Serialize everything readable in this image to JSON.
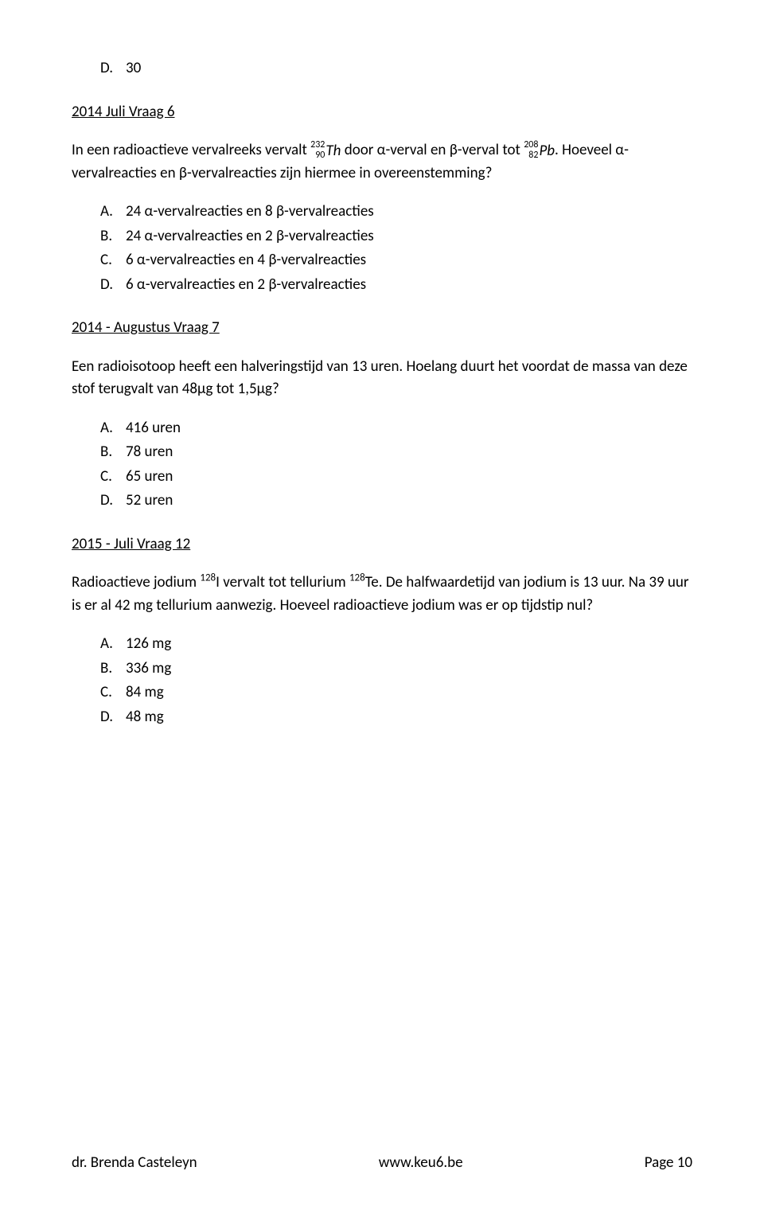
{
  "top_item": {
    "marker": "D.",
    "text": "30"
  },
  "q1": {
    "heading": "2014 Juli Vraag 6",
    "para_pre": "In een radioactieve vervalreeks vervalt ",
    "iso1_top": "232",
    "iso1_bot": "90",
    "iso1_sym": "Th",
    "para_mid1": " door α-verval en β-verval tot ",
    "iso2_top": "208",
    "iso2_bot": "82",
    "iso2_sym": "Pb",
    "para_mid2": ". Hoeveel α-vervalreacties en β-vervalreacties zijn hiermee in overeenstemming?",
    "opts": [
      {
        "m": "A.",
        "t": "24 α-vervalreacties en 8 β-vervalreacties"
      },
      {
        "m": "B.",
        "t": "24 α-vervalreacties en 2 β-vervalreacties"
      },
      {
        "m": "C.",
        "t": "6 α-vervalreacties en 4 β-vervalreacties"
      },
      {
        "m": "D.",
        "t": "6 α-vervalreacties en 2 β-vervalreacties"
      }
    ]
  },
  "q2": {
    "heading": "2014 - Augustus Vraag 7",
    "para": "Een radioisotoop heeft een halveringstijd van 13 uren. Hoelang duurt het voordat de massa van deze stof terugvalt van 48µg tot 1,5µg?",
    "opts": [
      {
        "m": "A.",
        "t": "416 uren"
      },
      {
        "m": "B.",
        "t": "78 uren"
      },
      {
        "m": "C.",
        "t": "65 uren"
      },
      {
        "m": "D.",
        "t": "52 uren"
      }
    ]
  },
  "q3": {
    "heading": "2015 - Juli Vraag 12",
    "p_pre": "Radioactieve jodium ",
    "p_sup1": "128",
    "p_el1": "I vervalt tot tellurium ",
    "p_sup2": "128",
    "p_el2": "Te. De halfwaardetijd van jodium is 13 uur. Na 39 uur is er al 42 mg tellurium aanwezig. Hoeveel radioactieve jodium was er op tijdstip nul?",
    "opts": [
      {
        "m": "A.",
        "t": "126 mg"
      },
      {
        "m": "B.",
        "t": "336 mg"
      },
      {
        "m": "C.",
        "t": "84 mg"
      },
      {
        "m": "D.",
        "t": "48 mg"
      }
    ]
  },
  "footer": {
    "left": "dr. Brenda Casteleyn",
    "center": "www.keu6.be",
    "right": "Page 10"
  }
}
